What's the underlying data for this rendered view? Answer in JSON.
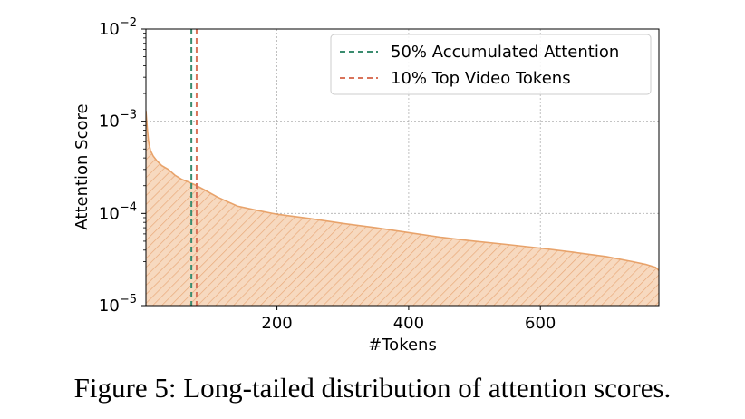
{
  "chart_data": {
    "type": "area",
    "yscale": "log",
    "xlim": [
      1,
      780
    ],
    "ylim": [
      1e-05,
      0.01
    ],
    "xlabel": "#Tokens",
    "ylabel": "Attention Score",
    "x_ticks": [
      200,
      400,
      600
    ],
    "y_ticks": [
      {
        "value": 1e-05,
        "base": "10",
        "exp": "−5"
      },
      {
        "value": 0.0001,
        "base": "10",
        "exp": "−4"
      },
      {
        "value": 0.001,
        "base": "10",
        "exp": "−3"
      },
      {
        "value": 0.01,
        "base": "10",
        "exp": "−2"
      }
    ],
    "grid": true,
    "legend_position": "top-right",
    "series": [
      {
        "kind": "area",
        "color": "#e8a36b",
        "hatch": true,
        "x": [
          1,
          3,
          5,
          8,
          12,
          18,
          25,
          35,
          45,
          55,
          65,
          75,
          90,
          110,
          140,
          170,
          200,
          250,
          300,
          350,
          400,
          450,
          500,
          550,
          600,
          650,
          700,
          740,
          760,
          775,
          780
        ],
        "y": [
          0.0013,
          0.00085,
          0.0006,
          0.00048,
          0.00042,
          0.00037,
          0.00033,
          0.0003,
          0.00026,
          0.000235,
          0.00022,
          0.000205,
          0.00018,
          0.00015,
          0.00012,
          0.000108,
          9.8e-05,
          8.8e-05,
          7.8e-05,
          7e-05,
          6.2e-05,
          5.5e-05,
          5e-05,
          4.6e-05,
          4.2e-05,
          3.8e-05,
          3.4e-05,
          3e-05,
          2.8e-05,
          2.6e-05,
          2.4e-05
        ]
      },
      {
        "kind": "vline",
        "name": "50% Accumulated Attention",
        "x": 70,
        "color": "#3a8c6f"
      },
      {
        "kind": "vline",
        "name": "10% Top Video Tokens",
        "x": 78,
        "color": "#d9735a"
      }
    ]
  },
  "caption": "Figure 5: Long-tailed distribution of attention scores."
}
